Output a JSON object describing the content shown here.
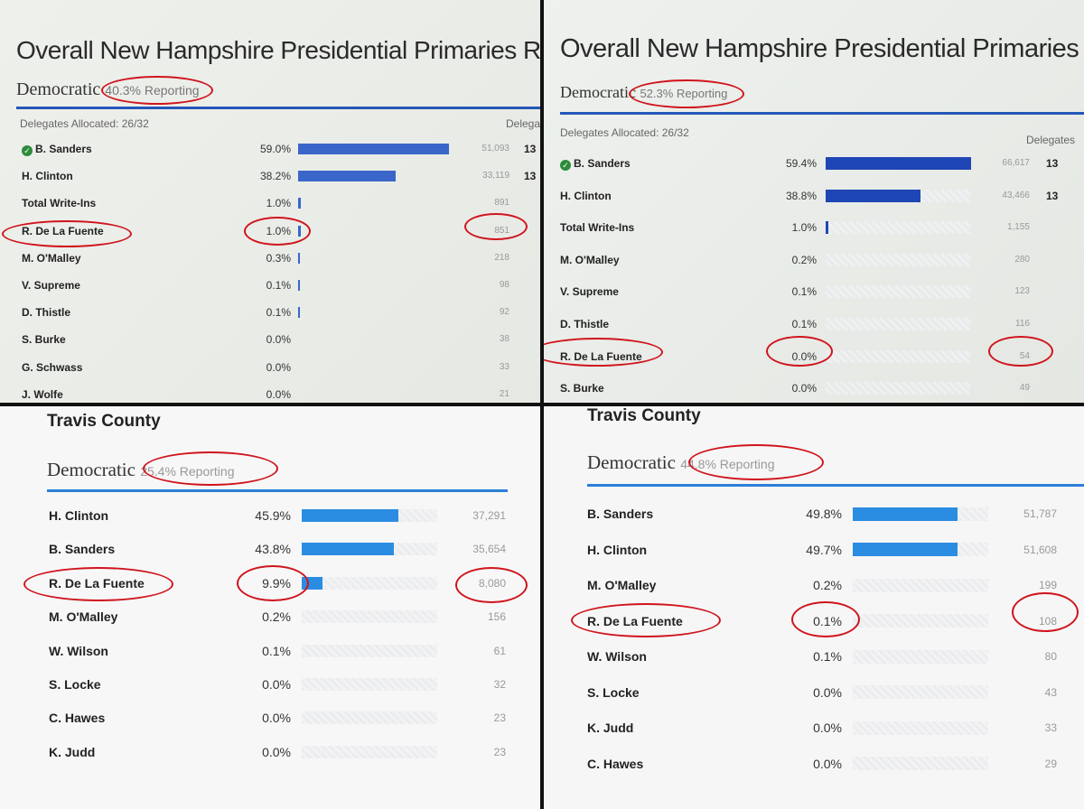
{
  "panels": [
    {
      "title": "Overall New Hampshire Presidential Primaries Results",
      "party": "Democratic",
      "reporting": "40.3% Reporting",
      "delegates_allocated": "Delegates Allocated: 26/32",
      "delegates_header": "Delega",
      "bar_color": "#3a66c9",
      "candidates": [
        {
          "name": "B. Sanders",
          "winner": true,
          "pct": "59.0%",
          "votes": "51,093",
          "delegates": "13",
          "share": 0.59
        },
        {
          "name": "H. Clinton",
          "pct": "38.2%",
          "votes": "33,119",
          "delegates": "13",
          "share": 0.382
        },
        {
          "name": "Total Write-Ins",
          "pct": "1.0%",
          "votes": "891",
          "share": 0.01
        },
        {
          "name": "R. De La Fuente",
          "pct": "1.0%",
          "votes": "851",
          "share": 0.01
        },
        {
          "name": "M. O'Malley",
          "pct": "0.3%",
          "votes": "218",
          "share": 0.003
        },
        {
          "name": "V. Supreme",
          "pct": "0.1%",
          "votes": "98",
          "share": 0.001
        },
        {
          "name": "D. Thistle",
          "pct": "0.1%",
          "votes": "92",
          "share": 0.001
        },
        {
          "name": "S. Burke",
          "pct": "0.0%",
          "votes": "38",
          "share": 0
        },
        {
          "name": "G. Schwass",
          "pct": "0.0%",
          "votes": "33",
          "share": 0
        },
        {
          "name": "J. Wolfe",
          "pct": "0.0%",
          "votes": "21",
          "share": 0
        }
      ]
    },
    {
      "title": "Overall New Hampshire Presidential Primaries Results",
      "party": "Democratic",
      "reporting": "52.3% Reporting",
      "delegates_allocated": "Delegates Allocated: 26/32",
      "delegates_header": "Delegates",
      "bar_color": "#1f46b5",
      "candidates": [
        {
          "name": "B. Sanders",
          "winner": true,
          "pct": "59.4%",
          "votes": "66,617",
          "delegates": "13",
          "share": 0.594
        },
        {
          "name": "H. Clinton",
          "pct": "38.8%",
          "votes": "43,466",
          "delegates": "13",
          "share": 0.388
        },
        {
          "name": "Total Write-Ins",
          "pct": "1.0%",
          "votes": "1,155",
          "share": 0.01
        },
        {
          "name": "M. O'Malley",
          "pct": "0.2%",
          "votes": "280",
          "share": 0
        },
        {
          "name": "V. Supreme",
          "pct": "0.1%",
          "votes": "123",
          "share": 0
        },
        {
          "name": "D. Thistle",
          "pct": "0.1%",
          "votes": "116",
          "share": 0
        },
        {
          "name": "R. De La Fuente",
          "pct": "0.0%",
          "votes": "54",
          "share": 0
        },
        {
          "name": "S. Burke",
          "pct": "0.0%",
          "votes": "49",
          "share": 0
        }
      ]
    },
    {
      "county": "Travis County",
      "party": "Democratic",
      "reporting": "25.4% Reporting",
      "bar_color": "#2b8de2",
      "candidates": [
        {
          "name": "H. Clinton",
          "pct": "45.9%",
          "votes": "37,291",
          "share": 0.459
        },
        {
          "name": "B. Sanders",
          "pct": "43.8%",
          "votes": "35,654",
          "share": 0.438
        },
        {
          "name": "R. De La Fuente",
          "pct": "9.9%",
          "votes": "8,080",
          "share": 0.099
        },
        {
          "name": "M. O'Malley",
          "pct": "0.2%",
          "votes": "156",
          "share": 0
        },
        {
          "name": "W. Wilson",
          "pct": "0.1%",
          "votes": "61",
          "share": 0
        },
        {
          "name": "S. Locke",
          "pct": "0.0%",
          "votes": "32",
          "share": 0
        },
        {
          "name": "C. Hawes",
          "pct": "0.0%",
          "votes": "23",
          "share": 0
        },
        {
          "name": "K. Judd",
          "pct": "0.0%",
          "votes": "23",
          "share": 0
        }
      ]
    },
    {
      "county": "Travis County",
      "party": "Democratic",
      "reporting": "44.8% Reporting",
      "bar_color": "#2b8de2",
      "candidates": [
        {
          "name": "B. Sanders",
          "pct": "49.8%",
          "votes": "51,787",
          "share": 0.498
        },
        {
          "name": "H. Clinton",
          "pct": "49.7%",
          "votes": "51,608",
          "share": 0.497
        },
        {
          "name": "M. O'Malley",
          "pct": "0.2%",
          "votes": "199",
          "share": 0
        },
        {
          "name": "R. De La Fuente",
          "pct": "0.1%",
          "votes": "108",
          "share": 0
        },
        {
          "name": "W. Wilson",
          "pct": "0.1%",
          "votes": "80",
          "share": 0
        },
        {
          "name": "S. Locke",
          "pct": "0.0%",
          "votes": "43",
          "share": 0
        },
        {
          "name": "K. Judd",
          "pct": "0.0%",
          "votes": "33",
          "share": 0
        },
        {
          "name": "C. Hawes",
          "pct": "0.0%",
          "votes": "29",
          "share": 0
        }
      ]
    }
  ]
}
